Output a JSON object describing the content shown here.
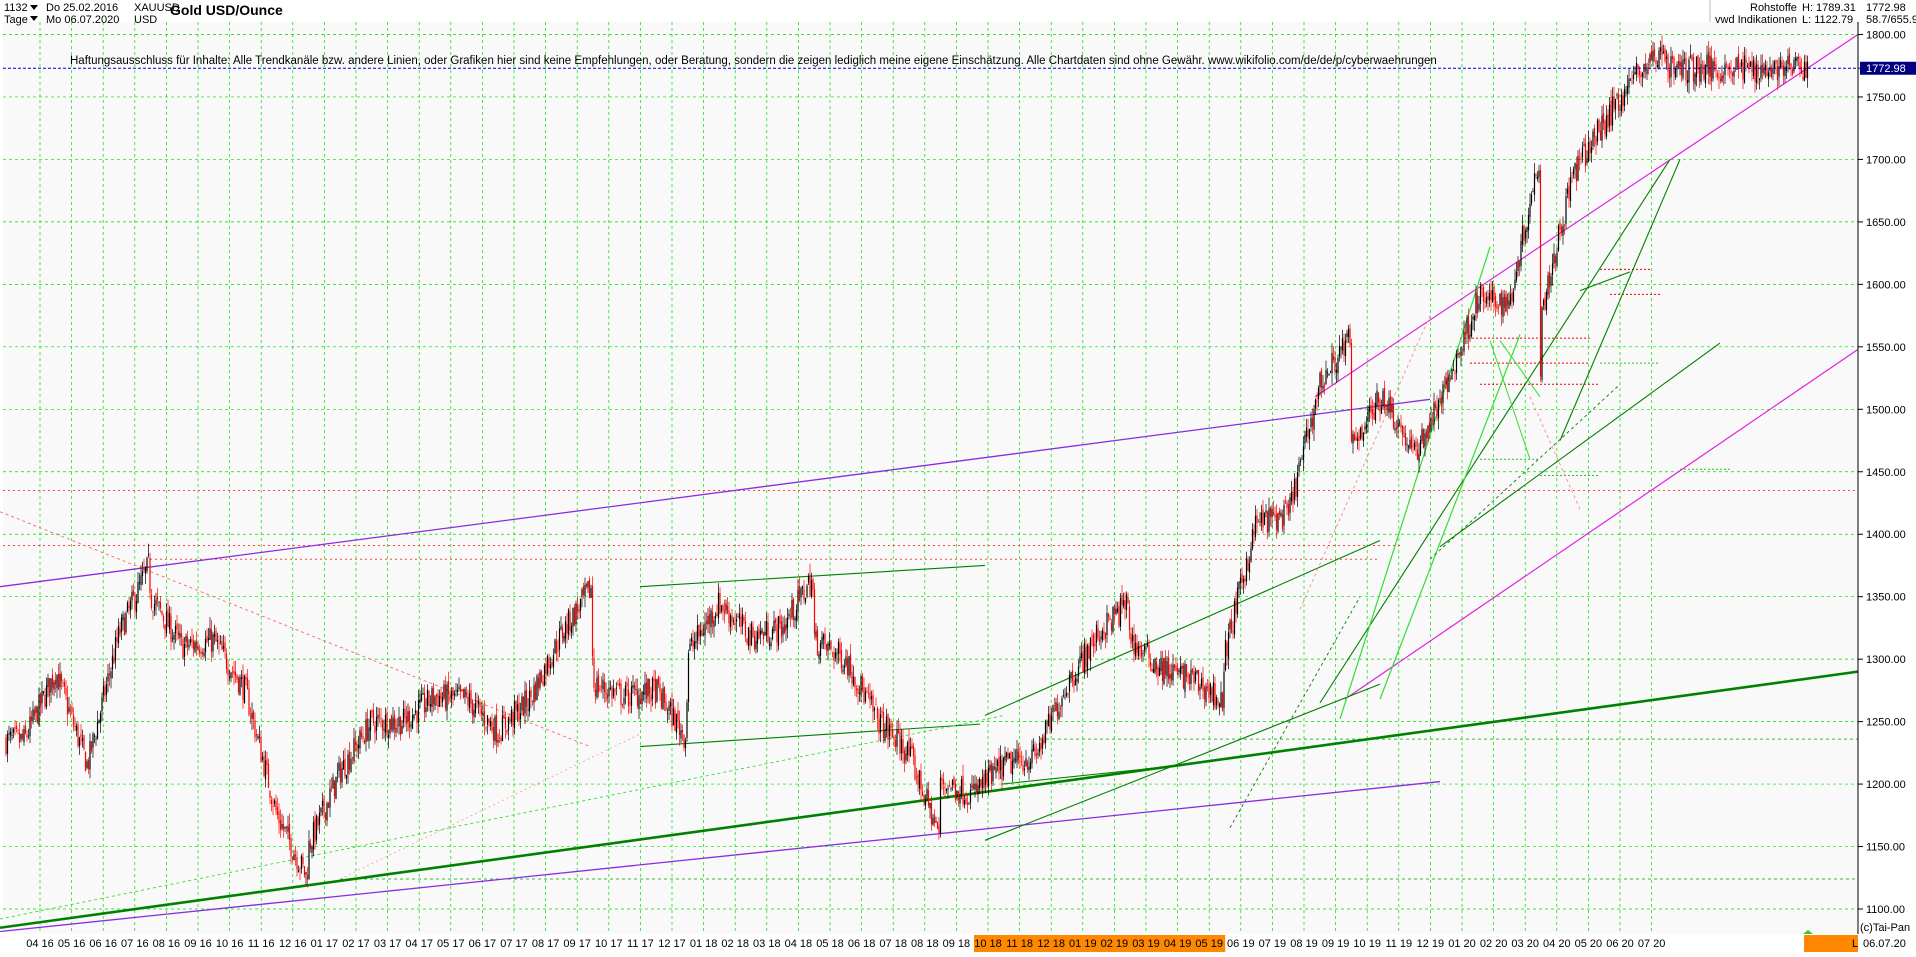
{
  "header": {
    "count": "1132",
    "date_from": "Do 25.02.2016",
    "period": "Tage",
    "date_to": "Mo 06.07.2020",
    "symbol": "XAUUSD",
    "currency": "USD",
    "title": "Gold USD/Ounce",
    "category": "Rohstoffe",
    "source": "vwd Indikationen",
    "high": "H: 1789.31",
    "low": "L: 1122.79",
    "last": "1772.98",
    "extra": "58.7/655.9"
  },
  "disclaimer": "Haftungsausschluss für Inhalte: Alle Trendkanäle bzw. andere Linien, oder Grafiken hier sind keine Empfehlungen, oder Beratung, sondern die zeigen lediglich meine eigene Einschätzung. Alle Chartdaten sind ohne Gewähr.  www.wikifolio.com/de/de/p/cyberwaehrungen",
  "copyright": "(c)Tai-Pan",
  "footer_right": "L",
  "colors": {
    "candle_up": "#000000",
    "candle_down": "#ff0000",
    "grid": "#00dd00",
    "last_price_line": "#0000cc",
    "last_price_box": "#000080",
    "highlight_band": "#ff8800",
    "channel_purple": "#8a2be2",
    "channel_magenta": "#e020e0",
    "trend_green": "#008000",
    "trend_light_green": "#33dd33"
  },
  "chart_data": {
    "type": "candlestick",
    "title": "Gold USD/Ounce",
    "ylim": [
      1080,
      1810
    ],
    "y_ticks": [
      1100,
      1150,
      1200,
      1250,
      1300,
      1350,
      1400,
      1450,
      1500,
      1550,
      1600,
      1650,
      1700,
      1750,
      1800
    ],
    "last_price": 1772.98,
    "x_tick_labels": [
      "04 16",
      "05 16",
      "06 16",
      "07 16",
      "08 16",
      "09 16",
      "10 16",
      "11 16",
      "12 16",
      "01 17",
      "02 17",
      "03 17",
      "04 17",
      "05 17",
      "06 17",
      "07 17",
      "08 17",
      "09 17",
      "10 17",
      "11 17",
      "12 17",
      "01 18",
      "02 18",
      "03 18",
      "04 18",
      "05 18",
      "06 18",
      "07 18",
      "08 18",
      "09 18",
      "10 18",
      "11 18",
      "12 18",
      "01 19",
      "02 19",
      "03 19",
      "04 19",
      "05 19",
      "06 19",
      "07 19",
      "08 19",
      "09 19",
      "10 19",
      "11 19",
      "12 19",
      "01 20",
      "02 20",
      "03 20",
      "04 20",
      "05 20",
      "06 20",
      "07 20"
    ],
    "highlighted_ticks": [
      "10 18",
      "11 18",
      "12 18",
      "01 19",
      "02 19",
      "03 19",
      "04 19",
      "05 19"
    ],
    "last_date": "06.07.20",
    "monthly_closes": [
      {
        "month": "03 16",
        "close": 1235
      },
      {
        "month": "04 16",
        "close": 1290
      },
      {
        "month": "05 16",
        "close": 1215
      },
      {
        "month": "06 16",
        "close": 1320
      },
      {
        "month": "07 16",
        "close": 1350
      },
      {
        "month": "08 16",
        "close": 1310
      },
      {
        "month": "09 16",
        "close": 1315
      },
      {
        "month": "10 16",
        "close": 1275
      },
      {
        "month": "11 16",
        "close": 1175
      },
      {
        "month": "12 16",
        "close": 1150
      },
      {
        "month": "01 17",
        "close": 1210
      },
      {
        "month": "02 17",
        "close": 1250
      },
      {
        "month": "03 17",
        "close": 1250
      },
      {
        "month": "04 17",
        "close": 1270
      },
      {
        "month": "05 17",
        "close": 1268
      },
      {
        "month": "06 17",
        "close": 1242
      },
      {
        "month": "07 17",
        "close": 1268
      },
      {
        "month": "08 17",
        "close": 1320
      },
      {
        "month": "09 17",
        "close": 1280
      },
      {
        "month": "10 17",
        "close": 1270
      },
      {
        "month": "11 17",
        "close": 1275
      },
      {
        "month": "12 17",
        "close": 1305
      },
      {
        "month": "01 18",
        "close": 1345
      },
      {
        "month": "02 18",
        "close": 1318
      },
      {
        "month": "03 18",
        "close": 1325
      },
      {
        "month": "04 18",
        "close": 1315
      },
      {
        "month": "05 18",
        "close": 1300
      },
      {
        "month": "06 18",
        "close": 1252
      },
      {
        "month": "07 18",
        "close": 1224
      },
      {
        "month": "08 18",
        "close": 1202
      },
      {
        "month": "09 18",
        "close": 1192
      },
      {
        "month": "10 18",
        "close": 1215
      },
      {
        "month": "11 18",
        "close": 1222
      },
      {
        "month": "12 18",
        "close": 1280
      },
      {
        "month": "01 19",
        "close": 1320
      },
      {
        "month": "02 19",
        "close": 1315
      },
      {
        "month": "03 19",
        "close": 1292
      },
      {
        "month": "04 19",
        "close": 1284
      },
      {
        "month": "05 19",
        "close": 1305
      },
      {
        "month": "06 19",
        "close": 1410
      },
      {
        "month": "07 19",
        "close": 1415
      },
      {
        "month": "08 19",
        "close": 1520
      },
      {
        "month": "09 19",
        "close": 1472
      },
      {
        "month": "10 19",
        "close": 1512
      },
      {
        "month": "11 19",
        "close": 1463
      },
      {
        "month": "12 19",
        "close": 1517
      },
      {
        "month": "01 20",
        "close": 1588
      },
      {
        "month": "02 20",
        "close": 1585
      },
      {
        "month": "03 20",
        "close": 1577
      },
      {
        "month": "04 20",
        "close": 1687
      },
      {
        "month": "05 20",
        "close": 1730
      },
      {
        "month": "06 20",
        "close": 1768
      },
      {
        "month": "07 20",
        "close": 1773
      }
    ],
    "key_points": [
      {
        "date": "07 16",
        "price": 1375,
        "label": "high"
      },
      {
        "date": "12 16",
        "price": 1125,
        "label": "low"
      },
      {
        "date": "09 17",
        "price": 1357,
        "label": "high"
      },
      {
        "date": "12 17",
        "price": 1237,
        "label": "low"
      },
      {
        "date": "04 18",
        "price": 1365,
        "label": "high"
      },
      {
        "date": "08 18",
        "price": 1160,
        "label": "low"
      },
      {
        "date": "02 19",
        "price": 1346,
        "label": "high"
      },
      {
        "date": "05 19",
        "price": 1266,
        "label": "low"
      },
      {
        "date": "09 19",
        "price": 1557,
        "label": "high"
      },
      {
        "date": "03 20",
        "price": 1703,
        "label": "high"
      },
      {
        "date": "03 20",
        "price": 1451,
        "label": "low"
      },
      {
        "date": "07 20",
        "price": 1789,
        "label": "high"
      }
    ],
    "grid": true
  }
}
